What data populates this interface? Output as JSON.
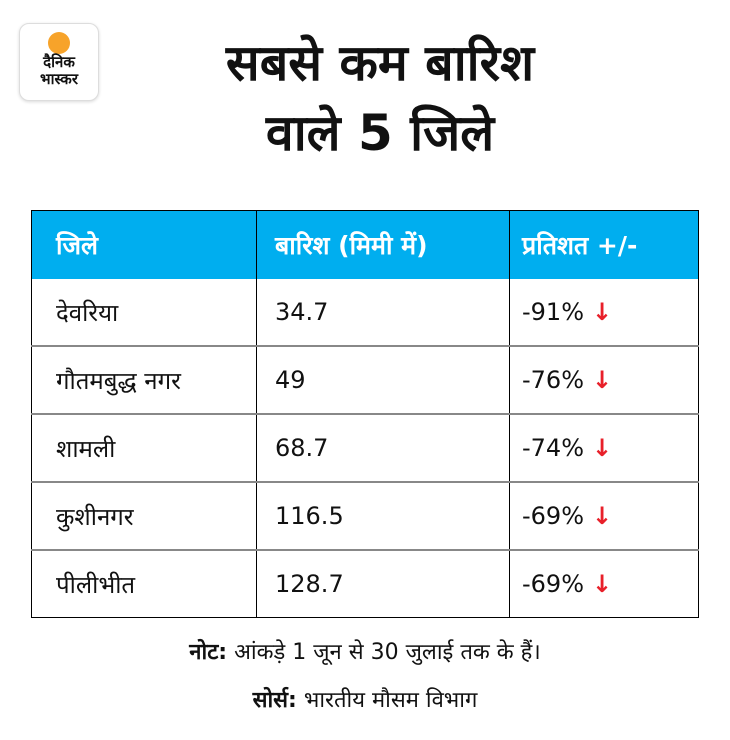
{
  "logo": {
    "line1": "दैनिक",
    "line2": "भास्कर"
  },
  "title": {
    "line1": "सबसे कम बारिश",
    "line2": "वाले 5 जिले"
  },
  "table": {
    "headers": [
      "जिले",
      "बारिश (मिमी में)",
      "प्रतिशत +/-"
    ],
    "rows": [
      {
        "district": "देवरिया",
        "rain": "34.7",
        "pct": "-91%"
      },
      {
        "district": "गौतमबुद्ध नगर",
        "rain": "49",
        "pct": "-76%"
      },
      {
        "district": "शामली",
        "rain": "68.7",
        "pct": "-74%"
      },
      {
        "district": "कुशीनगर",
        "rain": "116.5",
        "pct": "-69%"
      },
      {
        "district": "पीलीभीत",
        "rain": "128.7",
        "pct": "-69%"
      }
    ],
    "arrow": "↓"
  },
  "note": {
    "label": "नोट:",
    "text": " आंकड़े 1 जून से 30 जुलाई तक के हैं।"
  },
  "source": {
    "label": "सोर्स:",
    "text": " भारतीय मौसम विभाग"
  },
  "colors": {
    "header": "#00AEEF",
    "arrow": "#E8202A",
    "sun": "#F7A32A"
  }
}
